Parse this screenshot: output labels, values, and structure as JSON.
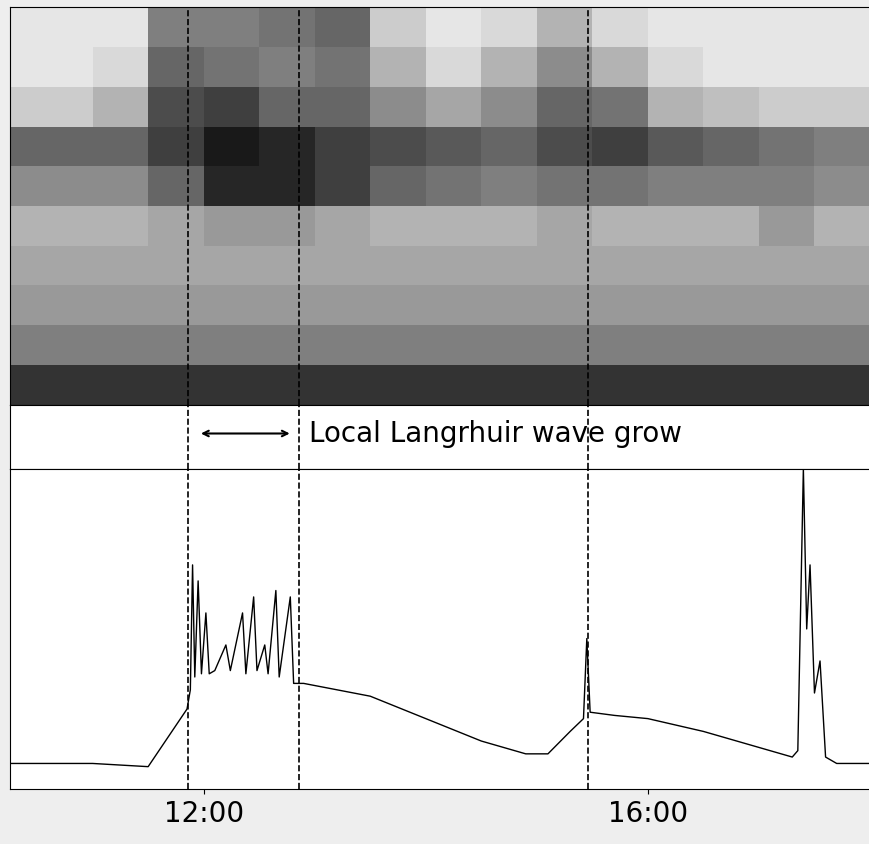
{
  "chart_data": [
    {
      "type": "heatmap",
      "x_edges": [
        10.26,
        11.0,
        11.5,
        12.0,
        12.5,
        13.0,
        13.5,
        14.0,
        14.5,
        15.0,
        15.5,
        16.0,
        16.5,
        17.0,
        17.5,
        18.0
      ],
      "y_edges": [
        0,
        0.1,
        0.2,
        0.3,
        0.4,
        0.5,
        0.6,
        0.7,
        0.8,
        0.9,
        1.0
      ],
      "cells": [
        [
          0.8,
          0.8,
          0.8,
          0.8,
          0.8,
          0.8,
          0.8,
          0.8,
          0.8,
          0.8,
          0.8,
          0.8,
          0.8,
          0.8,
          0.8
        ],
        [
          0.5,
          0.5,
          0.5,
          0.5,
          0.5,
          0.5,
          0.5,
          0.5,
          0.5,
          0.5,
          0.5,
          0.5,
          0.5,
          0.5,
          0.5
        ],
        [
          0.4,
          0.4,
          0.4,
          0.4,
          0.4,
          0.4,
          0.4,
          0.4,
          0.4,
          0.4,
          0.4,
          0.4,
          0.4,
          0.4,
          0.4
        ],
        [
          0.35,
          0.35,
          0.35,
          0.35,
          0.35,
          0.35,
          0.35,
          0.35,
          0.35,
          0.35,
          0.35,
          0.35,
          0.35,
          0.35,
          0.35
        ],
        [
          0.3,
          0.3,
          0.35,
          0.4,
          0.4,
          0.35,
          0.3,
          0.3,
          0.3,
          0.35,
          0.3,
          0.3,
          0.3,
          0.4,
          0.3
        ],
        [
          0.45,
          0.45,
          0.6,
          0.85,
          0.85,
          0.75,
          0.6,
          0.55,
          0.5,
          0.55,
          0.55,
          0.5,
          0.5,
          0.5,
          0.45
        ],
        [
          0.6,
          0.6,
          0.75,
          0.9,
          0.85,
          0.75,
          0.7,
          0.65,
          0.6,
          0.7,
          0.75,
          0.65,
          0.6,
          0.55,
          0.5
        ],
        [
          0.2,
          0.3,
          0.7,
          0.75,
          0.6,
          0.6,
          0.45,
          0.35,
          0.45,
          0.6,
          0.55,
          0.3,
          0.25,
          0.2,
          0.2
        ],
        [
          0.1,
          0.15,
          0.6,
          0.55,
          0.5,
          0.55,
          0.3,
          0.15,
          0.3,
          0.45,
          0.3,
          0.15,
          0.1,
          0.1,
          0.1
        ],
        [
          0.1,
          0.1,
          0.5,
          0.5,
          0.55,
          0.6,
          0.2,
          0.1,
          0.15,
          0.3,
          0.15,
          0.1,
          0.1,
          0.1,
          0.1
        ]
      ],
      "value_range": [
        0,
        1
      ],
      "xlim": [
        10.26,
        18.0
      ],
      "ylim": [
        0,
        1
      ],
      "vlines": [
        11.86,
        12.86,
        15.46
      ],
      "tick_labels": false
    },
    {
      "type": "line",
      "annotation": {
        "text": "Local Langrhuir wave grow",
        "span": [
          11.95,
          12.8
        ]
      },
      "x": [
        10.26,
        11.0,
        11.5,
        11.85,
        11.88,
        11.9,
        11.92,
        11.95,
        11.98,
        12.02,
        12.05,
        12.1,
        12.2,
        12.24,
        12.35,
        12.38,
        12.45,
        12.48,
        12.55,
        12.58,
        12.65,
        12.68,
        12.78,
        12.81,
        12.9,
        13.2,
        13.5,
        14.0,
        14.5,
        14.9,
        15.1,
        15.3,
        15.42,
        15.45,
        15.48,
        15.7,
        16.0,
        16.5,
        17.0,
        17.3,
        17.35,
        17.4,
        17.43,
        17.46,
        17.5,
        17.55,
        17.6,
        17.7,
        18.0
      ],
      "values": [
        0.08,
        0.08,
        0.07,
        0.25,
        0.31,
        0.7,
        0.35,
        0.65,
        0.36,
        0.55,
        0.36,
        0.37,
        0.45,
        0.37,
        0.55,
        0.36,
        0.6,
        0.37,
        0.45,
        0.36,
        0.62,
        0.35,
        0.6,
        0.33,
        0.33,
        0.31,
        0.29,
        0.22,
        0.15,
        0.11,
        0.11,
        0.18,
        0.22,
        0.47,
        0.24,
        0.23,
        0.22,
        0.18,
        0.13,
        0.1,
        0.12,
        1.0,
        0.5,
        0.7,
        0.3,
        0.4,
        0.1,
        0.08,
        0.08
      ],
      "color": "black",
      "xlim": [
        10.26,
        18.0
      ],
      "ylim": [
        0,
        1
      ],
      "xticks": [
        {
          "value": 12,
          "label": "12:00"
        },
        {
          "value": 16,
          "label": "16:00"
        }
      ],
      "vlines": [
        11.86,
        12.86,
        15.46
      ],
      "tick_labels": "x"
    }
  ]
}
